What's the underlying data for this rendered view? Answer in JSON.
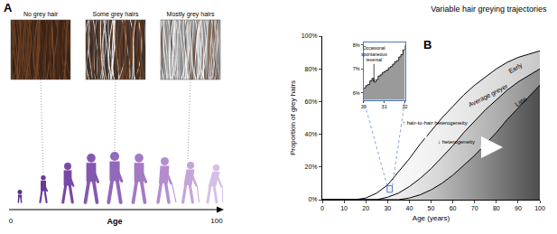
{
  "panel_a": {
    "label": "A",
    "stages": [
      "No grey hair",
      "Some grey hairs",
      "Mostly grey hairs"
    ],
    "axis_label": "Age",
    "axis_start": 0,
    "axis_end": 100
  },
  "chart_data": [
    {
      "panel_label": "B",
      "type": "area",
      "title": "Variable hair greying trajectories",
      "x_label": "Age (years)",
      "y_label": "Proportion of grey hairs",
      "x": [
        0,
        5,
        10,
        15,
        20,
        25,
        30,
        35,
        40,
        45,
        50,
        55,
        60,
        65,
        70,
        75,
        80,
        85,
        90,
        95,
        100
      ],
      "series": [
        {
          "name": "Early",
          "color": "#c8c8c8",
          "values": [
            0,
            0,
            0,
            0,
            1,
            4,
            9,
            17,
            25,
            34,
            42,
            50,
            57,
            64,
            70,
            75,
            80,
            84,
            87,
            89,
            91
          ]
        },
        {
          "name": "Average greyer",
          "color": "#8c8c8c",
          "values": [
            0,
            0,
            0,
            0,
            0,
            0,
            1.5,
            4,
            8,
            13,
            19,
            26,
            33,
            41,
            48,
            55,
            61,
            67,
            72,
            76,
            80
          ]
        },
        {
          "name": "Late",
          "color": "#4d4d4d",
          "values": [
            0,
            0,
            0,
            0,
            0,
            0,
            0,
            0,
            1,
            3,
            6,
            10,
            15,
            21,
            27,
            34,
            41,
            49,
            56,
            63,
            70
          ]
        }
      ],
      "xlim": [
        0,
        100
      ],
      "ylim": [
        0,
        100
      ],
      "xticks": [
        0,
        10,
        20,
        30,
        40,
        50,
        60,
        70,
        80,
        90,
        100
      ],
      "yticks": [
        {
          "value": 0,
          "label": "0%"
        },
        {
          "value": 20,
          "label": "20%"
        },
        {
          "value": 40,
          "label": "40%"
        },
        {
          "value": 60,
          "label": "60%"
        },
        {
          "value": 80,
          "label": "80%"
        },
        {
          "value": 100,
          "label": "100%"
        }
      ],
      "grid": false,
      "annotations": [
        "↑ hair-to-hair heterogeneity",
        "↓ heterogeneity"
      ]
    },
    {
      "type": "area",
      "x": [
        30,
        30.1,
        30.2,
        30.3,
        30.4,
        30.5,
        30.6,
        30.7,
        30.8,
        30.9,
        31,
        31.1,
        31.2,
        31.3,
        31.4,
        31.5,
        31.6,
        31.7,
        31.8,
        31.9,
        32
      ],
      "values": [
        6.2,
        6.3,
        6.35,
        6.5,
        6.6,
        6.45,
        6.55,
        6.7,
        6.75,
        6.85,
        6.9,
        6.95,
        7.05,
        7.1,
        7.2,
        7.3,
        7.35,
        7.5,
        7.6,
        7.8,
        8.0
      ],
      "color": "#9a9a9a",
      "line_style": "steps",
      "xlim": [
        30,
        32
      ],
      "ylim": [
        5.7,
        8.1
      ],
      "xticks": [
        30,
        31,
        32
      ],
      "yticks": [
        {
          "value": 6,
          "label": "6%"
        },
        {
          "value": 7,
          "label": "7%"
        },
        {
          "value": 8,
          "label": "8%"
        }
      ],
      "grid": false,
      "annotations": [
        "Occasional spontaneous reversal"
      ]
    }
  ]
}
